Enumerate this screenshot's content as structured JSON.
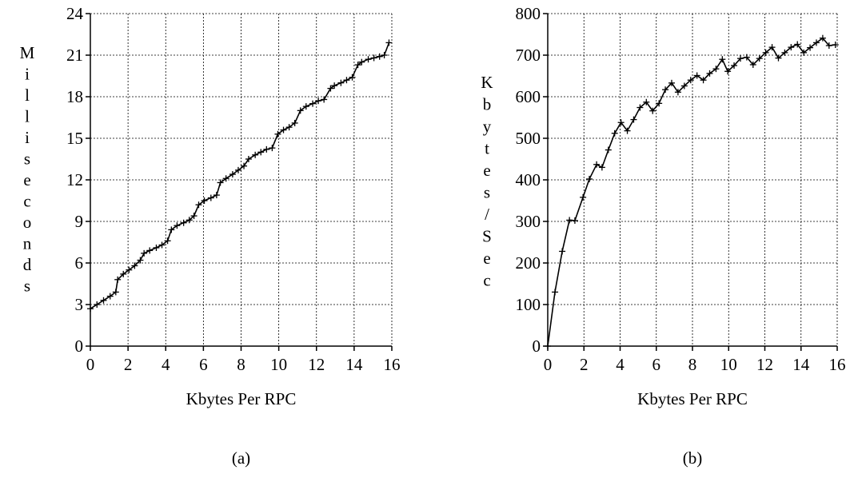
{
  "chart_data": [
    {
      "type": "line",
      "xlabel": "Kbytes Per RPC",
      "ylabel": "Milliseconds",
      "caption": "(a)",
      "xlim": [
        0,
        16
      ],
      "ylim": [
        0,
        24
      ],
      "xticks": [
        0,
        2,
        4,
        6,
        8,
        10,
        12,
        14,
        16
      ],
      "yticks": [
        0,
        3,
        6,
        9,
        12,
        15,
        18,
        21,
        24
      ],
      "grid": true,
      "marker": "plus",
      "series": [
        {
          "x": [
            0,
            0.35,
            0.7,
            1.05,
            1.35,
            1.45,
            1.75,
            2.05,
            2.35,
            2.65,
            2.85,
            3.15,
            3.5,
            3.8,
            4.1,
            4.3,
            4.6,
            4.95,
            5.25,
            5.5,
            5.75,
            6.05,
            6.4,
            6.7,
            6.9,
            7.2,
            7.55,
            7.85,
            8.15,
            8.4,
            8.75,
            9.05,
            9.35,
            9.65,
            9.95,
            10.25,
            10.55,
            10.85,
            11.15,
            11.45,
            11.8,
            12.1,
            12.4,
            12.75,
            12.95,
            13.3,
            13.6,
            13.9,
            14.2,
            14.4,
            14.75,
            15.05,
            15.35,
            15.6,
            15.85
          ],
          "y": [
            2.7,
            3.0,
            3.3,
            3.6,
            3.9,
            4.8,
            5.2,
            5.5,
            5.8,
            6.2,
            6.7,
            6.9,
            7.1,
            7.3,
            7.6,
            8.4,
            8.7,
            8.9,
            9.1,
            9.4,
            10.2,
            10.5,
            10.7,
            10.9,
            11.8,
            12.1,
            12.4,
            12.7,
            13.0,
            13.5,
            13.8,
            14.0,
            14.2,
            14.3,
            15.3,
            15.6,
            15.8,
            16.1,
            17.0,
            17.3,
            17.5,
            17.7,
            17.8,
            18.6,
            18.8,
            19.0,
            19.2,
            19.4,
            20.3,
            20.5,
            20.7,
            20.8,
            20.9,
            21.0,
            21.9
          ]
        }
      ]
    },
    {
      "type": "line",
      "xlabel": "Kbytes Per RPC",
      "ylabel": "Kbytes/Sec",
      "caption": "(b)",
      "xlim": [
        0,
        16
      ],
      "ylim": [
        0,
        800
      ],
      "xticks": [
        0,
        2,
        4,
        6,
        8,
        10,
        12,
        14,
        16
      ],
      "yticks": [
        0,
        100,
        200,
        300,
        400,
        500,
        600,
        700,
        800
      ],
      "grid": true,
      "marker": "plus",
      "series": [
        {
          "x": [
            0,
            0.4,
            0.8,
            1.2,
            1.5,
            1.95,
            2.3,
            2.7,
            3.0,
            3.35,
            3.7,
            4.05,
            4.4,
            4.75,
            5.1,
            5.45,
            5.8,
            6.15,
            6.5,
            6.85,
            7.2,
            7.55,
            7.9,
            8.25,
            8.6,
            8.95,
            9.3,
            9.65,
            9.95,
            10.3,
            10.65,
            11.0,
            11.35,
            11.7,
            12.05,
            12.4,
            12.75,
            13.1,
            13.45,
            13.8,
            14.15,
            14.5,
            14.85,
            15.2,
            15.55,
            15.9
          ],
          "y": [
            0,
            130,
            228,
            303,
            302,
            358,
            402,
            437,
            430,
            472,
            512,
            538,
            518,
            545,
            574,
            587,
            566,
            584,
            617,
            633,
            611,
            626,
            640,
            651,
            640,
            656,
            667,
            690,
            661,
            675,
            692,
            695,
            677,
            692,
            706,
            719,
            693,
            706,
            719,
            726,
            706,
            718,
            730,
            741,
            723,
            725
          ]
        }
      ]
    }
  ]
}
